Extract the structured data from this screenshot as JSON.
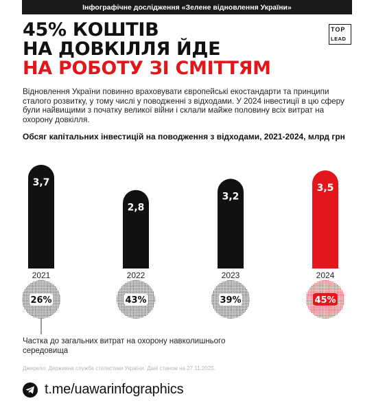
{
  "banner": "Інфографічне дослідження «Зелене відновлення України»",
  "title_lines": [
    "45% КОШТІВ",
    "НА ДОВКІЛЛЯ ЙДЕ"
  ],
  "title_highlight": "НА РОБОТУ ЗІ СМІТТЯМ",
  "logo": {
    "top": "TOP",
    "bottom": "LEAD"
  },
  "description": "Відновлення України повинно враховувати європейські екостандарти та принципи сталого розвитку, у тому числі у поводженні з відходами. У 2024 інвестиції в цю сферу були найвищими з початку великої війни і склали майже половину всіх витрат на охорону довкілля.",
  "chart_data": {
    "type": "bar",
    "title": "Обсяг капітальних інвестицій на поводження з відходами, 2021-2024, млрд грн",
    "categories": [
      "2021",
      "2022",
      "2023",
      "2024"
    ],
    "values": [
      3.7,
      2.8,
      3.2,
      3.5
    ],
    "value_labels": [
      "3,7",
      "2,8",
      "3,2",
      "3,5"
    ],
    "highlight_index": 3,
    "colors": {
      "bar": "#111111",
      "highlight": "#e3171b"
    },
    "share": {
      "values": [
        26,
        43,
        39,
        45
      ],
      "labels": [
        "26%",
        "43%",
        "39%",
        "45%"
      ],
      "legend": "Частка до загальних витрат на охорону навколишнього середовища"
    }
  },
  "source": "Джерело: Державна служба статистики України. Дані станом на 27.11.2025.",
  "telegram": {
    "icon": "telegram-icon",
    "link": "t.me/uawarinfographics"
  }
}
